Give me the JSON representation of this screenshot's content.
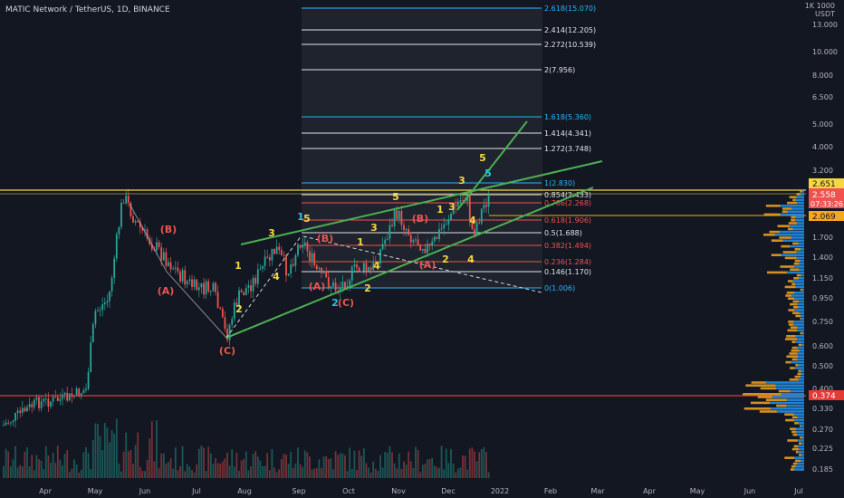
{
  "symbol_title": "MATIC Network / TetherUS, 1D, BINANCE",
  "scale_currency": [
    "1K 1000",
    "USDT"
  ],
  "colors": {
    "background": "#131722",
    "bull": "#26a69a",
    "bear": "#ef5350",
    "wave_yellow": "#f5d742",
    "wave_red": "#ef5350",
    "wave_blue": "#26c6da",
    "trend_green": "#4caf50",
    "fib_blue": "#29b6f6",
    "fib_white": "#e0e3eb",
    "fib_red": "#ef5350",
    "vp_blue": "#2196f3",
    "vp_orange": "#f5a623",
    "hline_yellow": "#f5d742",
    "hline_red": "#e53935"
  },
  "price_axis_ticks": [
    "13.000",
    "10.000",
    "8.000",
    "6.500",
    "5.000",
    "4.000",
    "3.200",
    "1.700",
    "1.400",
    "1.150",
    "0.950",
    "0.750",
    "0.600",
    "0.500",
    "0.400",
    "0.330",
    "0.270",
    "0.225",
    "0.185"
  ],
  "time_axis_ticks": [
    "Apr",
    "May",
    "Jun",
    "Jul",
    "Aug",
    "Sep",
    "Oct",
    "Nov",
    "Dec",
    "2022",
    "Feb",
    "Mar",
    "Apr",
    "May",
    "Jun",
    "Jul"
  ],
  "price_badges": {
    "high": "2.651",
    "last": "2.558",
    "countdown": "07:33:26",
    "mid": "2.069",
    "support": "0.374"
  },
  "fib_levels": [
    {
      "label": "2.618(15.070)",
      "color": "fib_blue"
    },
    {
      "label": "2.414(12.205)",
      "color": "fib_white"
    },
    {
      "label": "2.272(10.539)",
      "color": "fib_white"
    },
    {
      "label": "2(7.956)",
      "color": "fib_white"
    },
    {
      "label": "1.618(5.360)",
      "color": "fib_blue"
    },
    {
      "label": "1.414(4.341)",
      "color": "fib_white"
    },
    {
      "label": "1.272(3.748)",
      "color": "fib_white"
    },
    {
      "label": "1(2.830)",
      "color": "fib_blue"
    },
    {
      "label": "0.854(2.433)",
      "color": "fib_white"
    },
    {
      "label": "0.786(2.268)",
      "color": "fib_red"
    },
    {
      "label": "0.618(1.906)",
      "color": "fib_red"
    },
    {
      "label": "0.5(1.688)",
      "color": "fib_white"
    },
    {
      "label": "0.382(1.494)",
      "color": "fib_red"
    },
    {
      "label": "0.236(1.284)",
      "color": "fib_red"
    },
    {
      "label": "0.146(1.170)",
      "color": "fib_white"
    },
    {
      "label": "0(1.006)",
      "color": "fib_blue"
    }
  ],
  "wave_labels": [
    {
      "text": "(B)",
      "color": "wave_red"
    },
    {
      "text": "(A)",
      "color": "wave_red"
    },
    {
      "text": "(C)",
      "color": "wave_red"
    },
    {
      "text": "1",
      "color": "wave_yellow"
    },
    {
      "text": "2",
      "color": "wave_yellow"
    },
    {
      "text": "3",
      "color": "wave_yellow"
    },
    {
      "text": "4",
      "color": "wave_yellow"
    },
    {
      "text": "1",
      "color": "wave_blue"
    },
    {
      "text": "5",
      "color": "wave_yellow"
    },
    {
      "text": "(B)",
      "color": "wave_red"
    },
    {
      "text": "(A)",
      "color": "wave_red"
    },
    {
      "text": "2",
      "color": "wave_blue"
    },
    {
      "text": "(C)",
      "color": "wave_red"
    },
    {
      "text": "1",
      "color": "wave_yellow"
    },
    {
      "text": "2",
      "color": "wave_yellow"
    },
    {
      "text": "3",
      "color": "wave_yellow"
    },
    {
      "text": "4",
      "color": "wave_yellow"
    },
    {
      "text": "5",
      "color": "wave_yellow"
    },
    {
      "text": "(B)",
      "color": "wave_red"
    },
    {
      "text": "(A)",
      "color": "wave_red"
    },
    {
      "text": "1",
      "color": "wave_yellow"
    },
    {
      "text": "2",
      "color": "wave_yellow"
    },
    {
      "text": "3",
      "color": "wave_yellow"
    },
    {
      "text": "4",
      "color": "wave_yellow"
    },
    {
      "text": "3",
      "color": "wave_yellow"
    },
    {
      "text": "5",
      "color": "wave_blue"
    },
    {
      "text": "5",
      "color": "wave_yellow"
    },
    {
      "text": "4",
      "color": "wave_yellow"
    }
  ]
}
